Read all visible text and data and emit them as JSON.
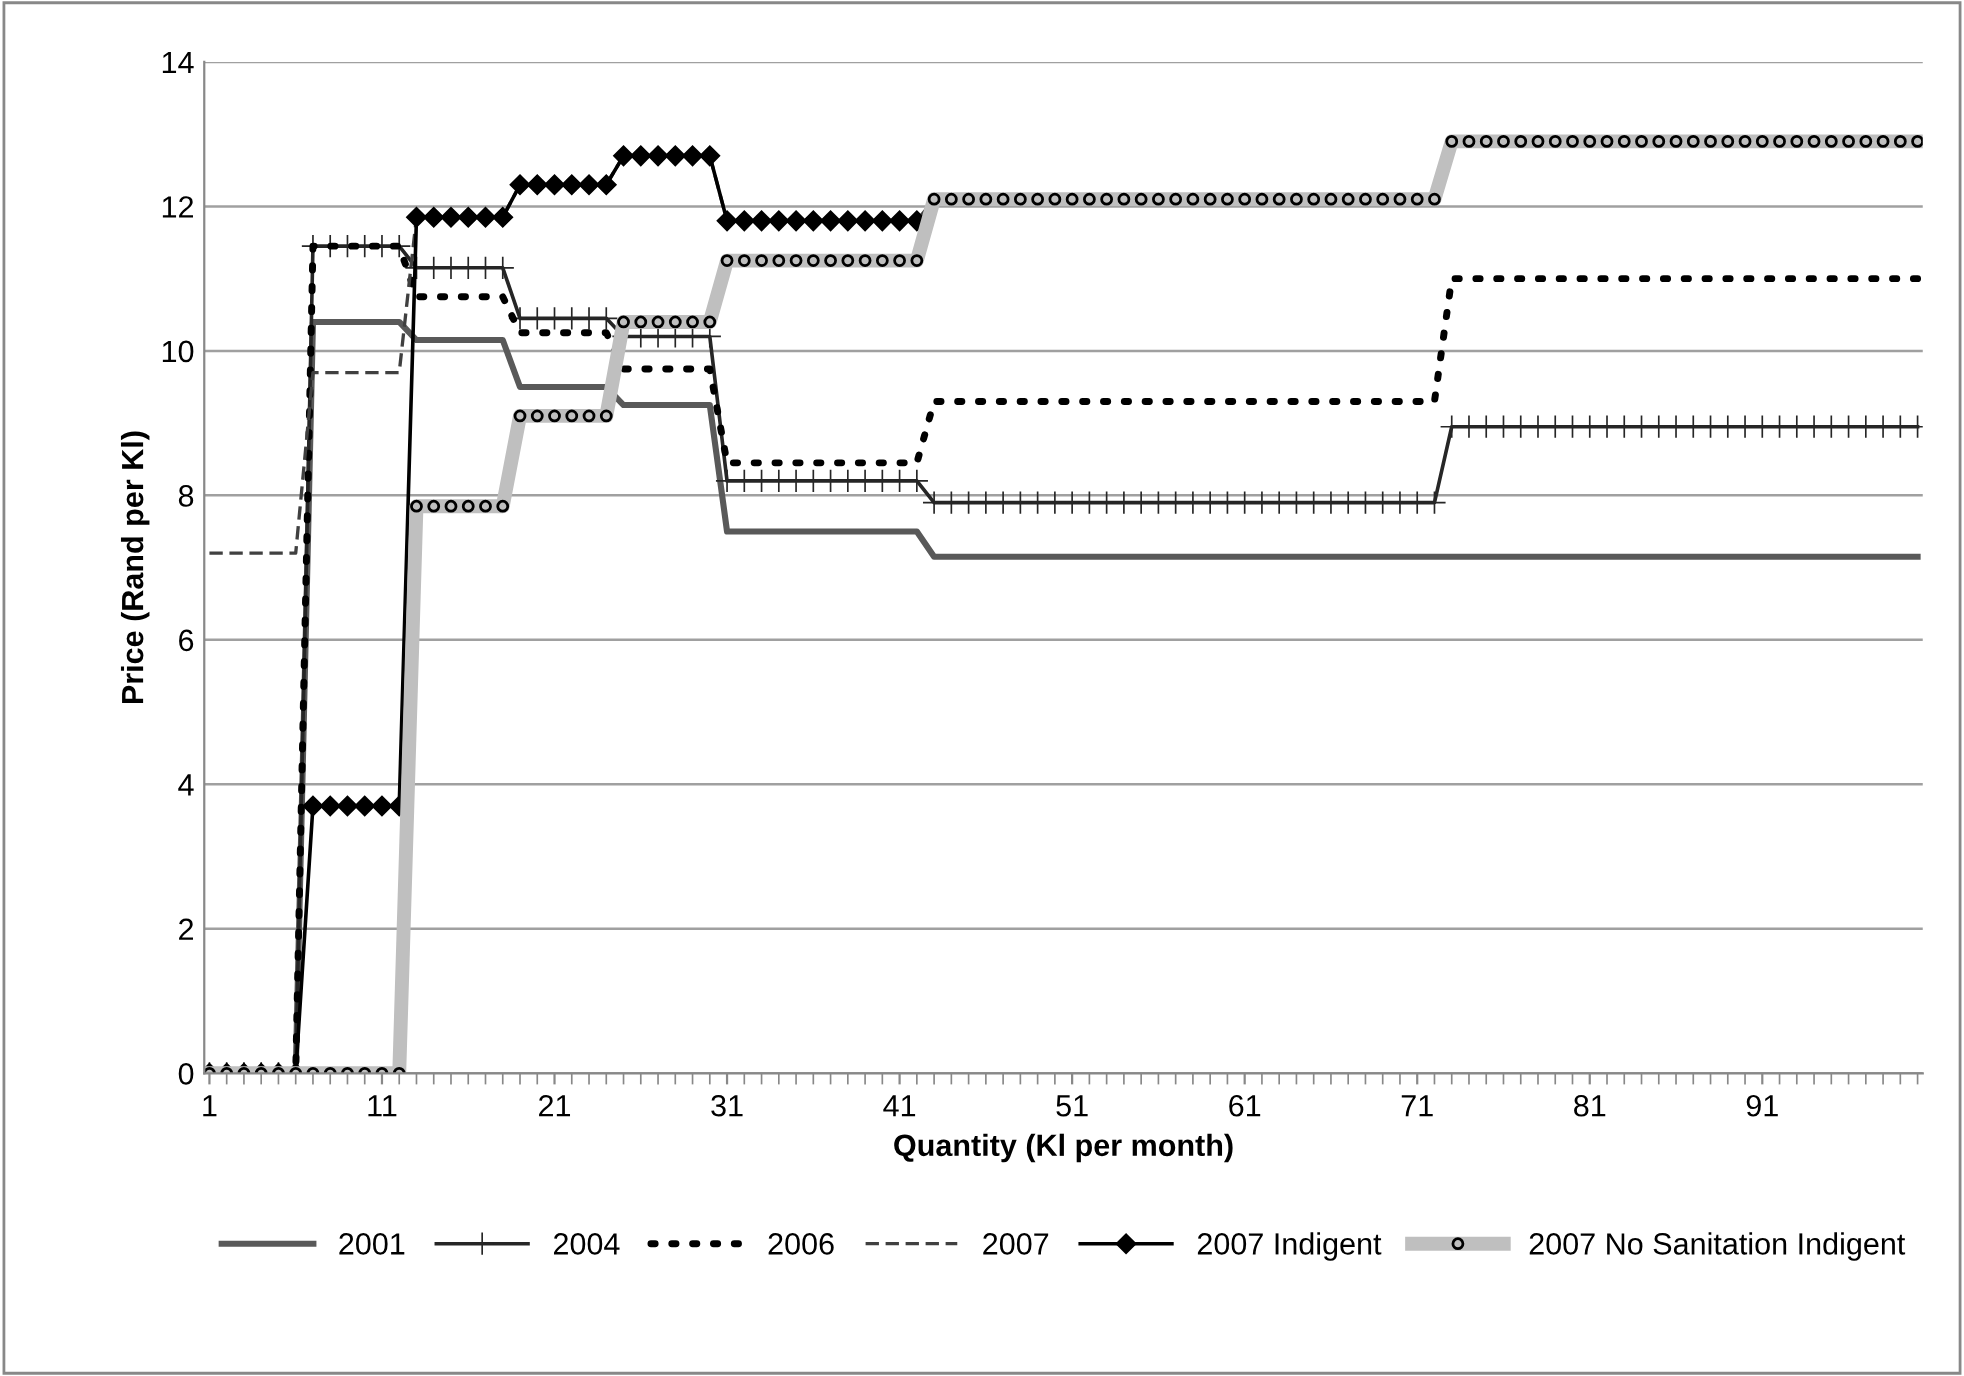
{
  "chart_data": {
    "type": "line",
    "xlabel": "Quantity (Kl per month)",
    "ylabel": "Price (Rand per Kl)",
    "categories": [
      "1",
      null,
      null,
      null,
      null,
      null,
      null,
      null,
      null,
      null,
      "11",
      null,
      null,
      null,
      null,
      null,
      null,
      null,
      null,
      null,
      "21",
      null,
      null,
      null,
      null,
      null,
      null,
      null,
      null,
      null,
      "31",
      null,
      null,
      null,
      null,
      null,
      null,
      null,
      null,
      null,
      "41",
      null,
      null,
      null,
      null,
      null,
      null,
      null,
      null,
      null,
      "51",
      null,
      null,
      null,
      null,
      null,
      null,
      null,
      null,
      null,
      "61",
      null,
      null,
      null,
      null,
      null,
      null,
      null,
      null,
      null,
      "71",
      null,
      null,
      null,
      null,
      null,
      null,
      null,
      null,
      null,
      "81",
      null,
      null,
      null,
      null,
      null,
      null,
      null,
      null,
      null,
      "91",
      null,
      null,
      null,
      null,
      null,
      null,
      null,
      null,
      null
    ],
    "ylim": [
      0,
      14
    ],
    "yticks": [
      0,
      2,
      4,
      6,
      8,
      10,
      12,
      14
    ],
    "grid": "y",
    "legend": "bottom",
    "series": [
      {
        "name": "2001",
        "color": "#595959",
        "marker": "none",
        "line_style": "solid",
        "values": [
          0,
          0,
          0,
          0,
          0,
          0,
          10.4,
          10.4,
          10.4,
          10.4,
          10.4,
          10.4,
          10.15,
          10.15,
          10.15,
          10.15,
          10.15,
          10.15,
          9.5,
          9.5,
          9.5,
          9.5,
          9.5,
          9.5,
          9.25,
          9.25,
          9.25,
          9.25,
          9.25,
          9.25,
          7.5,
          7.5,
          7.5,
          7.5,
          7.5,
          7.5,
          7.5,
          7.5,
          7.5,
          7.5,
          7.5,
          7.5,
          7.15,
          7.15,
          7.15,
          7.15,
          7.15,
          7.15,
          7.15,
          7.15,
          7.15,
          7.15,
          7.15,
          7.15,
          7.15,
          7.15,
          7.15,
          7.15,
          7.15,
          7.15,
          7.15,
          7.15,
          7.15,
          7.15,
          7.15,
          7.15,
          7.15,
          7.15,
          7.15,
          7.15,
          7.15,
          7.15,
          7.15,
          7.15,
          7.15,
          7.15,
          7.15,
          7.15,
          7.15,
          7.15,
          7.15,
          7.15,
          7.15,
          7.15,
          7.15,
          7.15,
          7.15,
          7.15,
          7.15,
          7.15,
          7.15,
          7.15,
          7.15,
          7.15,
          7.15,
          7.15,
          7.15,
          7.15,
          7.15,
          7.15
        ]
      },
      {
        "name": "2004",
        "color": "#262626",
        "marker": "cross",
        "line_style": "solid",
        "values": [
          0,
          0,
          0,
          0,
          0,
          0,
          11.45,
          11.45,
          11.45,
          11.45,
          11.45,
          11.45,
          11.15,
          11.15,
          11.15,
          11.15,
          11.15,
          11.15,
          10.45,
          10.45,
          10.45,
          10.45,
          10.45,
          10.45,
          10.2,
          10.2,
          10.2,
          10.2,
          10.2,
          10.2,
          8.2,
          8.2,
          8.2,
          8.2,
          8.2,
          8.2,
          8.2,
          8.2,
          8.2,
          8.2,
          8.2,
          8.2,
          7.9,
          7.9,
          7.9,
          7.9,
          7.9,
          7.9,
          7.9,
          7.9,
          7.9,
          7.9,
          7.9,
          7.9,
          7.9,
          7.9,
          7.9,
          7.9,
          7.9,
          7.9,
          7.9,
          7.9,
          7.9,
          7.9,
          7.9,
          7.9,
          7.9,
          7.9,
          7.9,
          7.9,
          7.9,
          7.9,
          8.95,
          8.95,
          8.95,
          8.95,
          8.95,
          8.95,
          8.95,
          8.95,
          8.95,
          8.95,
          8.95,
          8.95,
          8.95,
          8.95,
          8.95,
          8.95,
          8.95,
          8.95,
          8.95,
          8.95,
          8.95,
          8.95,
          8.95,
          8.95,
          8.95,
          8.95,
          8.95,
          8.95
        ]
      },
      {
        "name": "2006",
        "color": "#000000",
        "marker": "none",
        "line_style": "dotted",
        "values": [
          0,
          0,
          0,
          0,
          0,
          0,
          11.45,
          11.45,
          11.45,
          11.45,
          11.45,
          11.45,
          10.75,
          10.75,
          10.75,
          10.75,
          10.75,
          10.75,
          10.25,
          10.25,
          10.25,
          10.25,
          10.25,
          10.25,
          9.75,
          9.75,
          9.75,
          9.75,
          9.75,
          9.75,
          8.45,
          8.45,
          8.45,
          8.45,
          8.45,
          8.45,
          8.45,
          8.45,
          8.45,
          8.45,
          8.45,
          8.45,
          9.3,
          9.3,
          9.3,
          9.3,
          9.3,
          9.3,
          9.3,
          9.3,
          9.3,
          9.3,
          9.3,
          9.3,
          9.3,
          9.3,
          9.3,
          9.3,
          9.3,
          9.3,
          9.3,
          9.3,
          9.3,
          9.3,
          9.3,
          9.3,
          9.3,
          9.3,
          9.3,
          9.3,
          9.3,
          9.3,
          11.0,
          11.0,
          11.0,
          11.0,
          11.0,
          11.0,
          11.0,
          11.0,
          11.0,
          11.0,
          11.0,
          11.0,
          11.0,
          11.0,
          11.0,
          11.0,
          11.0,
          11.0,
          11.0,
          11.0,
          11.0,
          11.0,
          11.0,
          11.0,
          11.0,
          11.0,
          11.0,
          11.0
        ]
      },
      {
        "name": "2007",
        "color": "#404040",
        "marker": "none",
        "line_style": "dashed",
        "values": [
          7.2,
          7.2,
          7.2,
          7.2,
          7.2,
          7.2,
          9.7,
          9.7,
          9.7,
          9.7,
          9.7,
          9.7,
          11.85,
          11.85,
          11.85,
          11.85,
          11.85,
          11.85,
          12.3,
          12.3,
          12.3,
          12.3,
          12.3,
          12.3,
          12.7,
          12.7,
          12.7,
          12.7,
          12.7,
          12.7,
          11.8,
          11.8,
          11.8,
          11.8,
          11.8,
          11.8,
          11.8,
          11.8,
          11.8,
          11.8,
          11.8,
          11.8,
          12.1,
          12.1,
          12.1,
          12.1,
          12.1,
          12.1,
          12.1,
          12.1,
          12.1,
          12.1,
          12.1,
          12.1,
          12.1,
          12.1,
          12.1,
          12.1,
          12.1,
          12.1,
          12.1,
          12.1,
          12.1,
          12.1,
          12.1,
          12.1,
          12.1,
          12.1,
          12.1,
          12.1,
          12.1,
          12.1,
          12.9,
          12.9,
          12.9,
          12.9,
          12.9,
          12.9,
          12.9,
          12.9,
          12.9,
          12.9,
          12.9,
          12.9,
          12.9,
          12.9,
          12.9,
          12.9,
          12.9,
          12.9,
          12.9,
          12.9,
          12.9,
          12.9,
          12.9,
          12.9,
          12.9,
          12.9,
          12.9,
          12.9
        ]
      },
      {
        "name": "2007 Indigent",
        "color": "#000000",
        "marker": "diamond",
        "line_style": "solid",
        "values": [
          0,
          0,
          0,
          0,
          0,
          0,
          3.7,
          3.7,
          3.7,
          3.7,
          3.7,
          3.7,
          11.85,
          11.85,
          11.85,
          11.85,
          11.85,
          11.85,
          12.3,
          12.3,
          12.3,
          12.3,
          12.3,
          12.3,
          12.7,
          12.7,
          12.7,
          12.7,
          12.7,
          12.7,
          11.8,
          11.8,
          11.8,
          11.8,
          11.8,
          11.8,
          11.8,
          11.8,
          11.8,
          11.8,
          11.8,
          11.8,
          null,
          null,
          null,
          null,
          null,
          null,
          null,
          null,
          null,
          null,
          null,
          null,
          null,
          null,
          null,
          null,
          null,
          null,
          null,
          null,
          null,
          null,
          null,
          null,
          null,
          null,
          null,
          null,
          null,
          null,
          null,
          null,
          null,
          null,
          null,
          null,
          null,
          null,
          null,
          null,
          null,
          null,
          null,
          null,
          null,
          null,
          null,
          null,
          null,
          null,
          null,
          null,
          null,
          null,
          null,
          null,
          null,
          null
        ]
      },
      {
        "name": "2007 No Sanitation Indigent",
        "color": "#bfbfbf",
        "marker": "circle",
        "line_style": "solid",
        "values": [
          0,
          0,
          0,
          0,
          0,
          0,
          0,
          0,
          0,
          0,
          0,
          0,
          7.85,
          7.85,
          7.85,
          7.85,
          7.85,
          7.85,
          9.1,
          9.1,
          9.1,
          9.1,
          9.1,
          9.1,
          10.4,
          10.4,
          10.4,
          10.4,
          10.4,
          10.4,
          11.25,
          11.25,
          11.25,
          11.25,
          11.25,
          11.25,
          11.25,
          11.25,
          11.25,
          11.25,
          11.25,
          11.25,
          12.1,
          12.1,
          12.1,
          12.1,
          12.1,
          12.1,
          12.1,
          12.1,
          12.1,
          12.1,
          12.1,
          12.1,
          12.1,
          12.1,
          12.1,
          12.1,
          12.1,
          12.1,
          12.1,
          12.1,
          12.1,
          12.1,
          12.1,
          12.1,
          12.1,
          12.1,
          12.1,
          12.1,
          12.1,
          12.1,
          12.9,
          12.9,
          12.9,
          12.9,
          12.9,
          12.9,
          12.9,
          12.9,
          12.9,
          12.9,
          12.9,
          12.9,
          12.9,
          12.9,
          12.9,
          12.9,
          12.9,
          12.9,
          12.9,
          12.9,
          12.9,
          12.9,
          12.9,
          12.9,
          12.9,
          12.9,
          12.9,
          12.9
        ]
      }
    ]
  }
}
